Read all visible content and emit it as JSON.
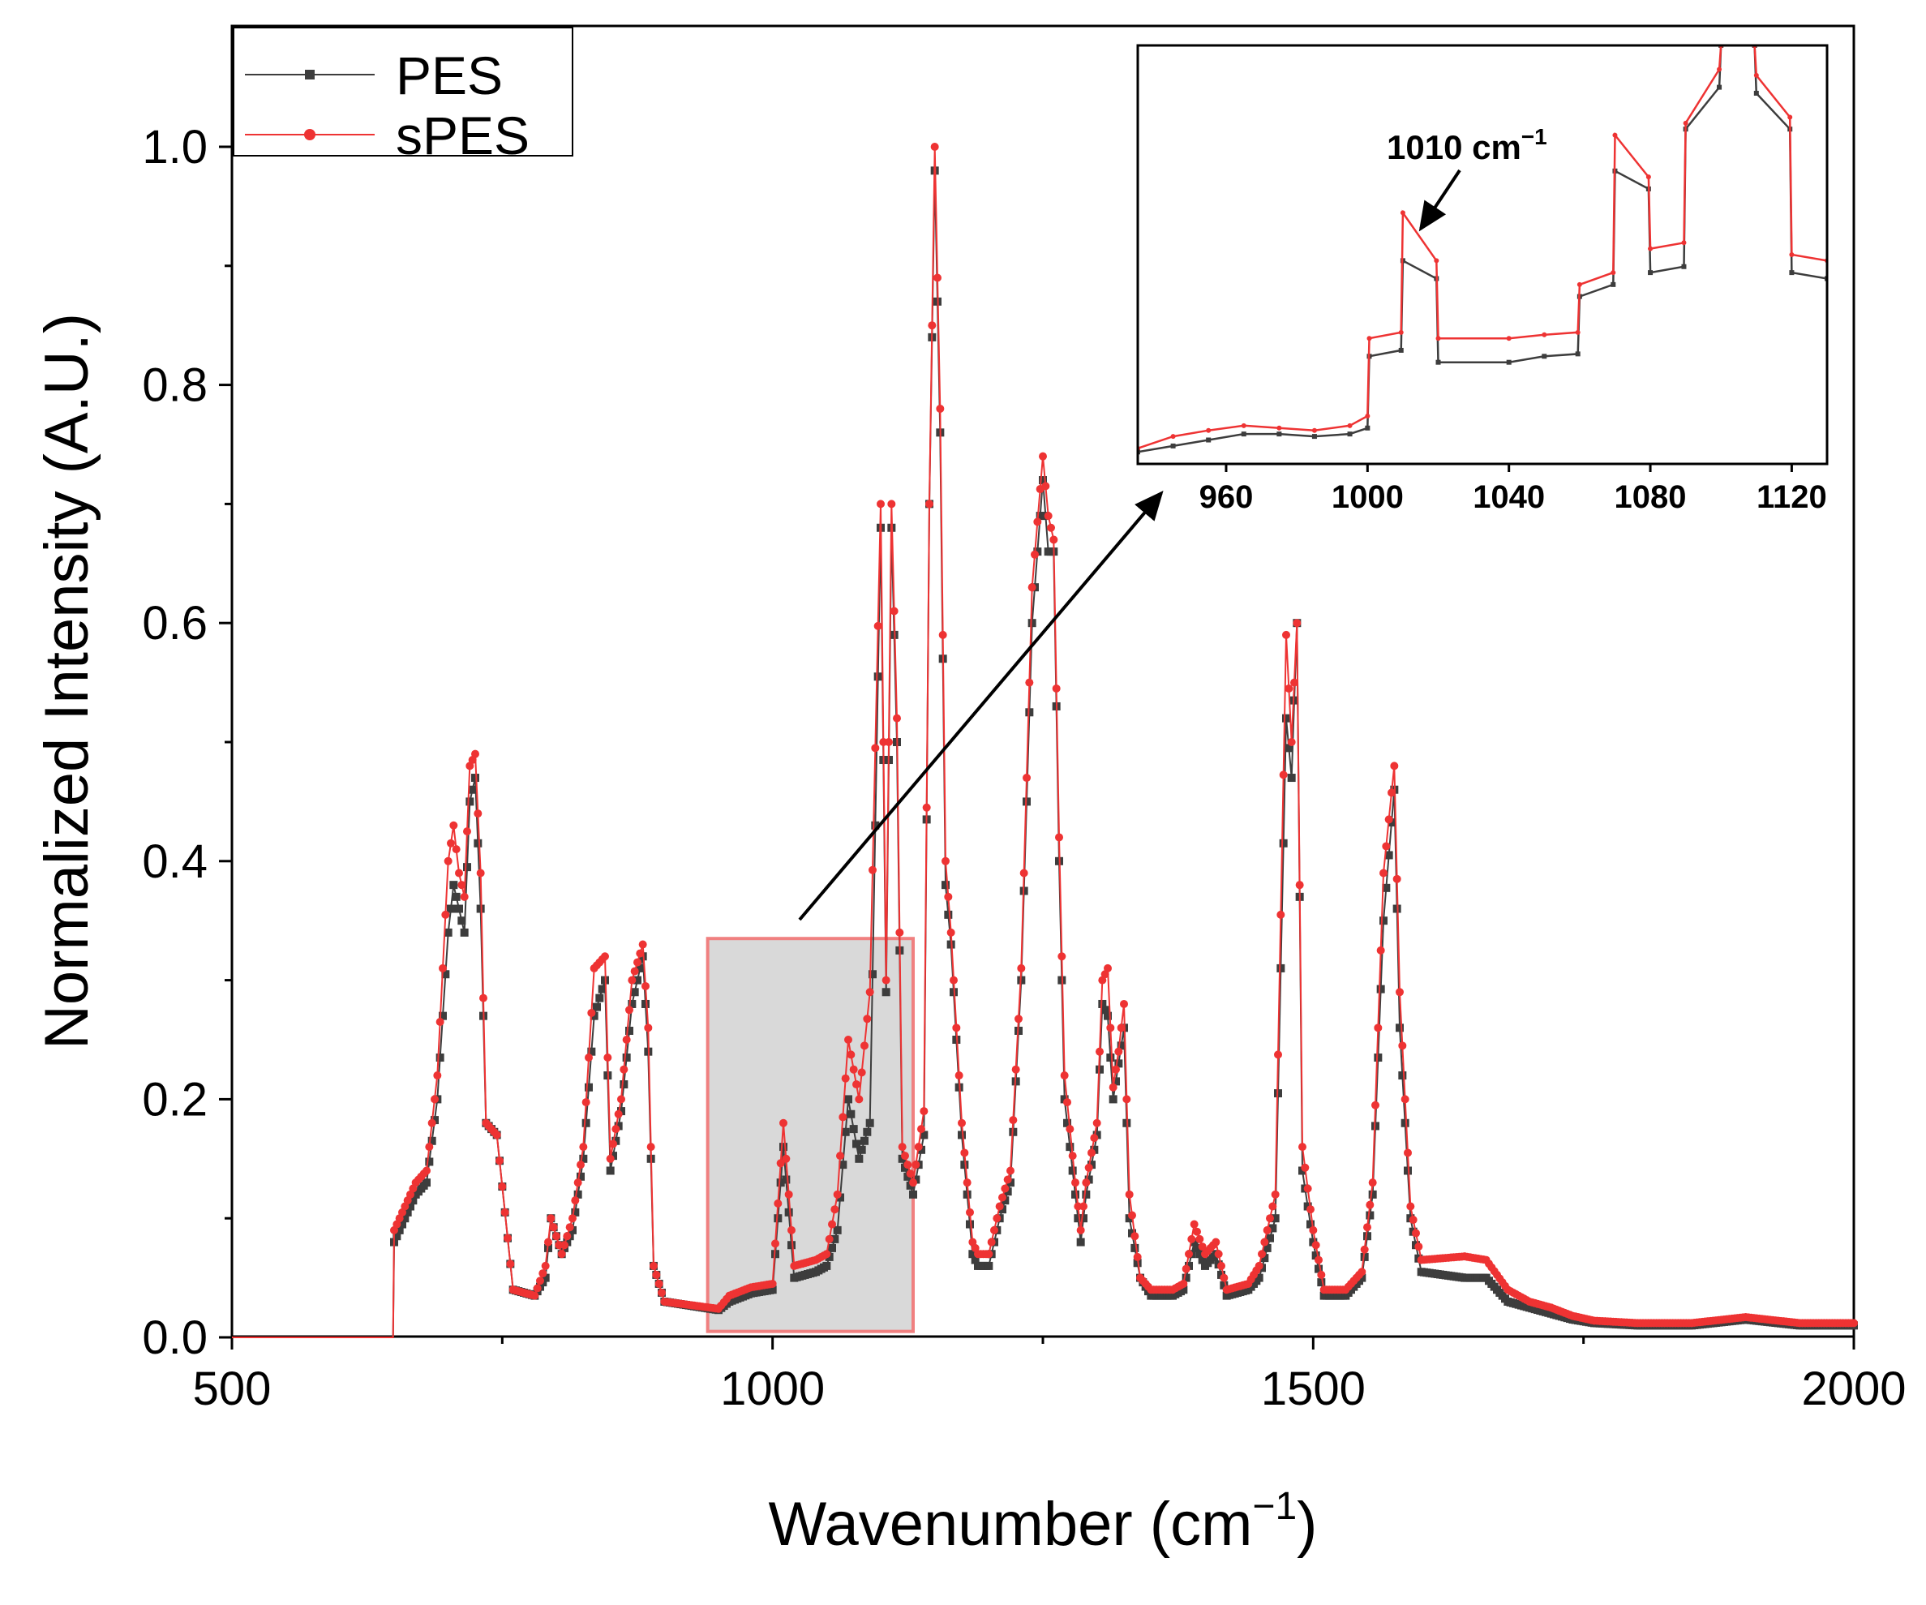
{
  "chart_data": {
    "type": "line",
    "xlabel": "Wavenumber (cm",
    "xlabel_sup": "−1",
    "xlabel_close": ")",
    "ylabel": "Normalized Intensity (A.U.)",
    "xlim": [
      500,
      2000
    ],
    "ylim": [
      0,
      1.09
    ],
    "x_ticks": [
      "500",
      "1000",
      "1500",
      "2000"
    ],
    "y_ticks": [
      "0.0",
      "0.2",
      "0.4",
      "0.6",
      "0.8",
      "1.0"
    ],
    "legend": {
      "placement": "top-left",
      "entries": [
        "PES",
        "sPES"
      ]
    },
    "series": [
      {
        "name": "PES",
        "color": "#3d3d3d",
        "points": [
          [
            500,
            0
          ],
          [
            649,
            0
          ],
          [
            650,
            0.08
          ],
          [
            660,
            0.1
          ],
          [
            670,
            0.12
          ],
          [
            680,
            0.13
          ],
          [
            690,
            0.2
          ],
          [
            700,
            0.34
          ],
          [
            705,
            0.38
          ],
          [
            710,
            0.36
          ],
          [
            715,
            0.34
          ],
          [
            720,
            0.45
          ],
          [
            725,
            0.47
          ],
          [
            730,
            0.36
          ],
          [
            735,
            0.18
          ],
          [
            745,
            0.17
          ],
          [
            760,
            0.04
          ],
          [
            780,
            0.035
          ],
          [
            790,
            0.05
          ],
          [
            795,
            0.1
          ],
          [
            805,
            0.07
          ],
          [
            815,
            0.09
          ],
          [
            825,
            0.15
          ],
          [
            835,
            0.27
          ],
          [
            845,
            0.3
          ],
          [
            850,
            0.14
          ],
          [
            860,
            0.19
          ],
          [
            870,
            0.28
          ],
          [
            880,
            0.32
          ],
          [
            885,
            0.24
          ],
          [
            890,
            0.06
          ],
          [
            900,
            0.03
          ],
          [
            950,
            0.023
          ],
          [
            960,
            0.03
          ],
          [
            980,
            0.037
          ],
          [
            1000,
            0.04
          ],
          [
            1010,
            0.16
          ],
          [
            1020,
            0.05
          ],
          [
            1040,
            0.055
          ],
          [
            1050,
            0.06
          ],
          [
            1060,
            0.09
          ],
          [
            1070,
            0.2
          ],
          [
            1080,
            0.15
          ],
          [
            1090,
            0.18
          ],
          [
            1100,
            0.68
          ],
          [
            1105,
            0.29
          ],
          [
            1110,
            0.68
          ],
          [
            1115,
            0.5
          ],
          [
            1120,
            0.15
          ],
          [
            1130,
            0.12
          ],
          [
            1140,
            0.17
          ],
          [
            1145,
            0.7
          ],
          [
            1150,
            0.98
          ],
          [
            1155,
            0.76
          ],
          [
            1160,
            0.38
          ],
          [
            1165,
            0.33
          ],
          [
            1175,
            0.17
          ],
          [
            1185,
            0.07
          ],
          [
            1190,
            0.06
          ],
          [
            1200,
            0.06
          ],
          [
            1210,
            0.1
          ],
          [
            1220,
            0.13
          ],
          [
            1230,
            0.3
          ],
          [
            1240,
            0.6
          ],
          [
            1250,
            0.72
          ],
          [
            1255,
            0.66
          ],
          [
            1260,
            0.66
          ],
          [
            1265,
            0.4
          ],
          [
            1270,
            0.2
          ],
          [
            1280,
            0.12
          ],
          [
            1285,
            0.08
          ],
          [
            1290,
            0.12
          ],
          [
            1300,
            0.17
          ],
          [
            1305,
            0.28
          ],
          [
            1310,
            0.27
          ],
          [
            1315,
            0.2
          ],
          [
            1320,
            0.23
          ],
          [
            1325,
            0.26
          ],
          [
            1330,
            0.1
          ],
          [
            1340,
            0.05
          ],
          [
            1350,
            0.035
          ],
          [
            1370,
            0.035
          ],
          [
            1380,
            0.04
          ],
          [
            1390,
            0.08
          ],
          [
            1400,
            0.06
          ],
          [
            1410,
            0.07
          ],
          [
            1420,
            0.035
          ],
          [
            1440,
            0.04
          ],
          [
            1450,
            0.05
          ],
          [
            1465,
            0.1
          ],
          [
            1475,
            0.52
          ],
          [
            1480,
            0.47
          ],
          [
            1485,
            0.6
          ],
          [
            1490,
            0.14
          ],
          [
            1500,
            0.08
          ],
          [
            1510,
            0.035
          ],
          [
            1530,
            0.035
          ],
          [
            1545,
            0.05
          ],
          [
            1555,
            0.12
          ],
          [
            1565,
            0.35
          ],
          [
            1575,
            0.46
          ],
          [
            1580,
            0.26
          ],
          [
            1590,
            0.1
          ],
          [
            1600,
            0.055
          ],
          [
            1640,
            0.05
          ],
          [
            1660,
            0.05
          ],
          [
            1680,
            0.03
          ],
          [
            1700,
            0.025
          ],
          [
            1720,
            0.02
          ],
          [
            1740,
            0.015
          ],
          [
            1760,
            0.012
          ],
          [
            1800,
            0.01
          ],
          [
            1850,
            0.01
          ],
          [
            1900,
            0.015
          ],
          [
            1950,
            0.01
          ],
          [
            2000,
            0.01
          ]
        ]
      },
      {
        "name": "sPES",
        "color": "#ee3333",
        "points": [
          [
            500,
            0
          ],
          [
            649,
            0
          ],
          [
            650,
            0.09
          ],
          [
            660,
            0.11
          ],
          [
            670,
            0.13
          ],
          [
            680,
            0.14
          ],
          [
            690,
            0.22
          ],
          [
            700,
            0.4
          ],
          [
            705,
            0.43
          ],
          [
            710,
            0.39
          ],
          [
            715,
            0.37
          ],
          [
            720,
            0.48
          ],
          [
            725,
            0.49
          ],
          [
            730,
            0.39
          ],
          [
            735,
            0.18
          ],
          [
            745,
            0.17
          ],
          [
            760,
            0.04
          ],
          [
            780,
            0.035
          ],
          [
            790,
            0.06
          ],
          [
            795,
            0.1
          ],
          [
            805,
            0.07
          ],
          [
            815,
            0.1
          ],
          [
            825,
            0.16
          ],
          [
            835,
            0.31
          ],
          [
            845,
            0.32
          ],
          [
            850,
            0.15
          ],
          [
            860,
            0.2
          ],
          [
            870,
            0.3
          ],
          [
            880,
            0.33
          ],
          [
            885,
            0.26
          ],
          [
            890,
            0.06
          ],
          [
            900,
            0.03
          ],
          [
            950,
            0.024
          ],
          [
            960,
            0.035
          ],
          [
            980,
            0.042
          ],
          [
            1000,
            0.045
          ],
          [
            1010,
            0.18
          ],
          [
            1020,
            0.06
          ],
          [
            1040,
            0.065
          ],
          [
            1050,
            0.07
          ],
          [
            1060,
            0.12
          ],
          [
            1070,
            0.25
          ],
          [
            1080,
            0.2
          ],
          [
            1090,
            0.29
          ],
          [
            1100,
            0.7
          ],
          [
            1105,
            0.3
          ],
          [
            1110,
            0.7
          ],
          [
            1115,
            0.52
          ],
          [
            1120,
            0.16
          ],
          [
            1130,
            0.13
          ],
          [
            1140,
            0.19
          ],
          [
            1145,
            0.7
          ],
          [
            1150,
            1.0
          ],
          [
            1155,
            0.78
          ],
          [
            1160,
            0.4
          ],
          [
            1165,
            0.34
          ],
          [
            1175,
            0.18
          ],
          [
            1185,
            0.08
          ],
          [
            1190,
            0.07
          ],
          [
            1200,
            0.07
          ],
          [
            1210,
            0.11
          ],
          [
            1220,
            0.14
          ],
          [
            1230,
            0.31
          ],
          [
            1240,
            0.63
          ],
          [
            1250,
            0.74
          ],
          [
            1255,
            0.69
          ],
          [
            1260,
            0.67
          ],
          [
            1265,
            0.42
          ],
          [
            1270,
            0.22
          ],
          [
            1280,
            0.13
          ],
          [
            1285,
            0.09
          ],
          [
            1290,
            0.13
          ],
          [
            1300,
            0.18
          ],
          [
            1305,
            0.3
          ],
          [
            1310,
            0.31
          ],
          [
            1315,
            0.21
          ],
          [
            1320,
            0.24
          ],
          [
            1325,
            0.28
          ],
          [
            1330,
            0.12
          ],
          [
            1340,
            0.05
          ],
          [
            1350,
            0.04
          ],
          [
            1370,
            0.04
          ],
          [
            1380,
            0.045
          ],
          [
            1390,
            0.095
          ],
          [
            1400,
            0.07
          ],
          [
            1410,
            0.08
          ],
          [
            1420,
            0.04
          ],
          [
            1440,
            0.045
          ],
          [
            1450,
            0.06
          ],
          [
            1465,
            0.12
          ],
          [
            1475,
            0.59
          ],
          [
            1480,
            0.5
          ],
          [
            1485,
            0.6
          ],
          [
            1490,
            0.16
          ],
          [
            1500,
            0.09
          ],
          [
            1510,
            0.04
          ],
          [
            1530,
            0.04
          ],
          [
            1545,
            0.055
          ],
          [
            1555,
            0.13
          ],
          [
            1565,
            0.39
          ],
          [
            1575,
            0.48
          ],
          [
            1580,
            0.29
          ],
          [
            1590,
            0.11
          ],
          [
            1600,
            0.065
          ],
          [
            1640,
            0.068
          ],
          [
            1660,
            0.065
          ],
          [
            1680,
            0.04
          ],
          [
            1700,
            0.03
          ],
          [
            1720,
            0.025
          ],
          [
            1740,
            0.018
          ],
          [
            1760,
            0.014
          ],
          [
            1800,
            0.012
          ],
          [
            1850,
            0.012
          ],
          [
            1900,
            0.017
          ],
          [
            1950,
            0.012
          ],
          [
            2000,
            0.012
          ]
        ]
      }
    ],
    "highlight_region": {
      "x_range": [
        940,
        1130
      ],
      "y_range": [
        0.005,
        0.335
      ]
    },
    "inset": {
      "xlim": [
        935,
        1130
      ],
      "ylim": [
        0.65,
        1.0
      ],
      "x_ticks": [
        "960",
        "1000",
        "1040",
        "1080",
        "1120"
      ],
      "annotation": {
        "text": "1010 cm",
        "sup": "−1",
        "x": 1010
      },
      "series": [
        {
          "name": "PES",
          "points": [
            [
              935,
              0.66
            ],
            [
              945,
              0.665
            ],
            [
              955,
              0.67
            ],
            [
              965,
              0.675
            ],
            [
              975,
              0.675
            ],
            [
              985,
              0.673
            ],
            [
              995,
              0.675
            ],
            [
              1000,
              0.68
            ],
            [
              1000.5,
              0.74
            ],
            [
              1009.5,
              0.745
            ],
            [
              1010,
              0.82
            ],
            [
              1019.5,
              0.805
            ],
            [
              1020,
              0.735
            ],
            [
              1040,
              0.735
            ],
            [
              1050,
              0.74
            ],
            [
              1059.5,
              0.742
            ],
            [
              1060,
              0.79
            ],
            [
              1069.5,
              0.8
            ],
            [
              1070,
              0.895
            ],
            [
              1079.5,
              0.88
            ],
            [
              1080,
              0.81
            ],
            [
              1089.5,
              0.815
            ],
            [
              1090,
              0.93
            ],
            [
              1099.5,
              0.965
            ],
            [
              1100,
              1.0
            ],
            [
              1109.5,
              1.0
            ],
            [
              1110,
              0.96
            ],
            [
              1119.5,
              0.93
            ],
            [
              1120,
              0.81
            ],
            [
              1130,
              0.805
            ]
          ]
        },
        {
          "name": "sPES",
          "points": [
            [
              935,
              0.663
            ],
            [
              945,
              0.673
            ],
            [
              955,
              0.678
            ],
            [
              965,
              0.682
            ],
            [
              975,
              0.68
            ],
            [
              985,
              0.678
            ],
            [
              995,
              0.682
            ],
            [
              1000,
              0.69
            ],
            [
              1000.5,
              0.755
            ],
            [
              1009.5,
              0.76
            ],
            [
              1010,
              0.86
            ],
            [
              1019.5,
              0.82
            ],
            [
              1020,
              0.755
            ],
            [
              1040,
              0.755
            ],
            [
              1050,
              0.758
            ],
            [
              1059.5,
              0.76
            ],
            [
              1060,
              0.8
            ],
            [
              1069.5,
              0.81
            ],
            [
              1070,
              0.925
            ],
            [
              1079.5,
              0.89
            ],
            [
              1080,
              0.83
            ],
            [
              1089.5,
              0.835
            ],
            [
              1090,
              0.935
            ],
            [
              1099.5,
              0.98
            ],
            [
              1100,
              1.0
            ],
            [
              1109.5,
              1.0
            ],
            [
              1110,
              0.975
            ],
            [
              1119.5,
              0.94
            ],
            [
              1120,
              0.825
            ],
            [
              1130,
              0.82
            ]
          ]
        }
      ]
    }
  }
}
